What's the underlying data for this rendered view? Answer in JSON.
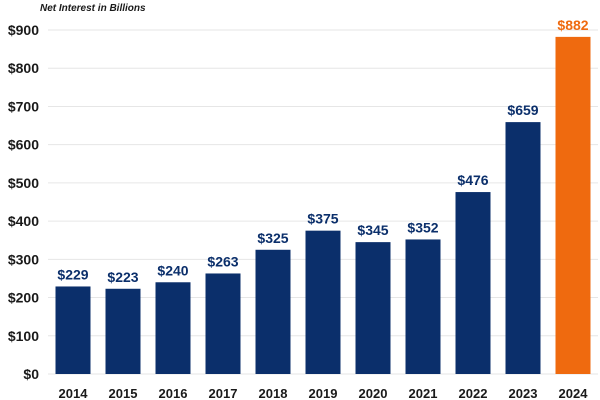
{
  "chart_data": {
    "type": "bar",
    "ylabel": "Net Interest in Billions",
    "categories": [
      "2014",
      "2015",
      "2016",
      "2017",
      "2018",
      "2019",
      "2020",
      "2021",
      "2022",
      "2023",
      "2024"
    ],
    "values": [
      229,
      223,
      240,
      263,
      325,
      375,
      345,
      352,
      476,
      659,
      882
    ],
    "data_labels": [
      "$229",
      "$223",
      "$240",
      "$263",
      "$325",
      "$375",
      "$345",
      "$352",
      "$476",
      "$659",
      "$882"
    ],
    "yticks": [
      0,
      100,
      200,
      300,
      400,
      500,
      600,
      700,
      800,
      900
    ],
    "ytick_labels": [
      "$0",
      "$100",
      "$200",
      "$300",
      "$400",
      "$500",
      "$600",
      "$700",
      "$800",
      "$900"
    ],
    "ylim": [
      0,
      900
    ],
    "grid": true,
    "legend": "none",
    "colors": {
      "bar": "#0b2f6b",
      "highlight_bar": "#ef6a0f",
      "label": "#0b2f6b",
      "highlight_label": "#ef6a0f"
    },
    "highlight_index": 10
  }
}
